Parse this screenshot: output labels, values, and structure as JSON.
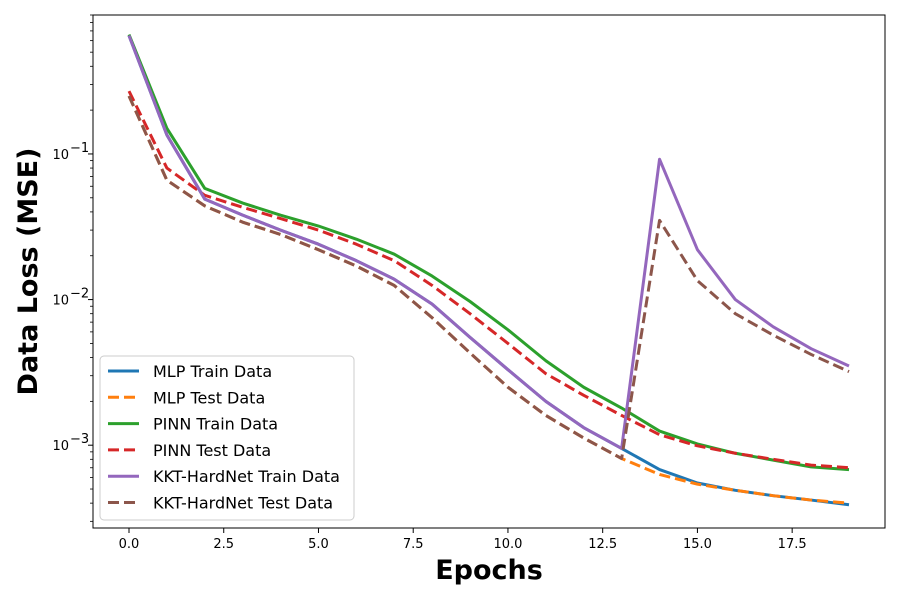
{
  "chart_data": {
    "type": "line",
    "title": "",
    "xlabel": "Epochs",
    "ylabel": "Data Loss (MSE)",
    "xlim": [
      -0.95,
      19.95
    ],
    "ylim": [
      0.00027,
      0.9
    ],
    "yscale": "log",
    "grid": false,
    "legend_position": "lower-left",
    "x_ticks": [
      0.0,
      2.5,
      5.0,
      7.5,
      10.0,
      12.5,
      15.0,
      17.5
    ],
    "x_tick_labels": [
      "0.0",
      "2.5",
      "5.0",
      "7.5",
      "10.0",
      "12.5",
      "15.0",
      "17.5"
    ],
    "y_ticks": [
      0.001,
      0.01,
      0.1
    ],
    "x": [
      0,
      1,
      2,
      3,
      4,
      5,
      6,
      7,
      8,
      9,
      10,
      11,
      12,
      13,
      14,
      15,
      16,
      17,
      18,
      19
    ],
    "series": [
      {
        "name": "MLP Train Data",
        "color": "#1f77b4",
        "dash": "solid",
        "values": [
          0.65,
          0.135,
          0.049,
          0.038,
          0.03,
          0.024,
          0.0185,
          0.0138,
          0.0093,
          0.0055,
          0.0033,
          0.002,
          0.00132,
          0.00095,
          0.00068,
          0.00055,
          0.00049,
          0.00045,
          0.00042,
          0.00039
        ]
      },
      {
        "name": "MLP Test Data",
        "color": "#ff7f0e",
        "dash": "dashed",
        "values": [
          0.25,
          0.066,
          0.044,
          0.034,
          0.028,
          0.022,
          0.017,
          0.0125,
          0.0075,
          0.0043,
          0.0025,
          0.0016,
          0.00112,
          0.00081,
          0.00063,
          0.00054,
          0.00049,
          0.00045,
          0.00042,
          0.0004
        ]
      },
      {
        "name": "PINN Train Data",
        "color": "#2ca02c",
        "dash": "solid",
        "values": [
          0.66,
          0.15,
          0.058,
          0.046,
          0.038,
          0.032,
          0.026,
          0.0205,
          0.0145,
          0.0097,
          0.0062,
          0.0038,
          0.0025,
          0.0018,
          0.00125,
          0.00102,
          0.00088,
          0.00079,
          0.00071,
          0.00068
        ]
      },
      {
        "name": "PINN Test Data",
        "color": "#d62728",
        "dash": "dashed",
        "values": [
          0.27,
          0.08,
          0.052,
          0.043,
          0.036,
          0.03,
          0.024,
          0.0185,
          0.0125,
          0.008,
          0.005,
          0.0031,
          0.0022,
          0.0016,
          0.00118,
          0.00099,
          0.00088,
          0.0008,
          0.00073,
          0.0007
        ]
      },
      {
        "name": "KKT-HardNet Train Data",
        "color": "#9467bd",
        "dash": "solid",
        "values": [
          0.65,
          0.135,
          0.049,
          0.038,
          0.03,
          0.024,
          0.0185,
          0.0138,
          0.0093,
          0.0055,
          0.0033,
          0.002,
          0.00132,
          0.00095,
          0.092,
          0.022,
          0.01,
          0.0065,
          0.0046,
          0.0035
        ]
      },
      {
        "name": "KKT-HardNet Test Data",
        "color": "#8c564b",
        "dash": "dashed",
        "values": [
          0.25,
          0.066,
          0.044,
          0.034,
          0.028,
          0.022,
          0.017,
          0.0125,
          0.0075,
          0.0043,
          0.0025,
          0.0016,
          0.00112,
          0.00081,
          0.035,
          0.0135,
          0.008,
          0.0057,
          0.0042,
          0.0032
        ]
      }
    ]
  }
}
